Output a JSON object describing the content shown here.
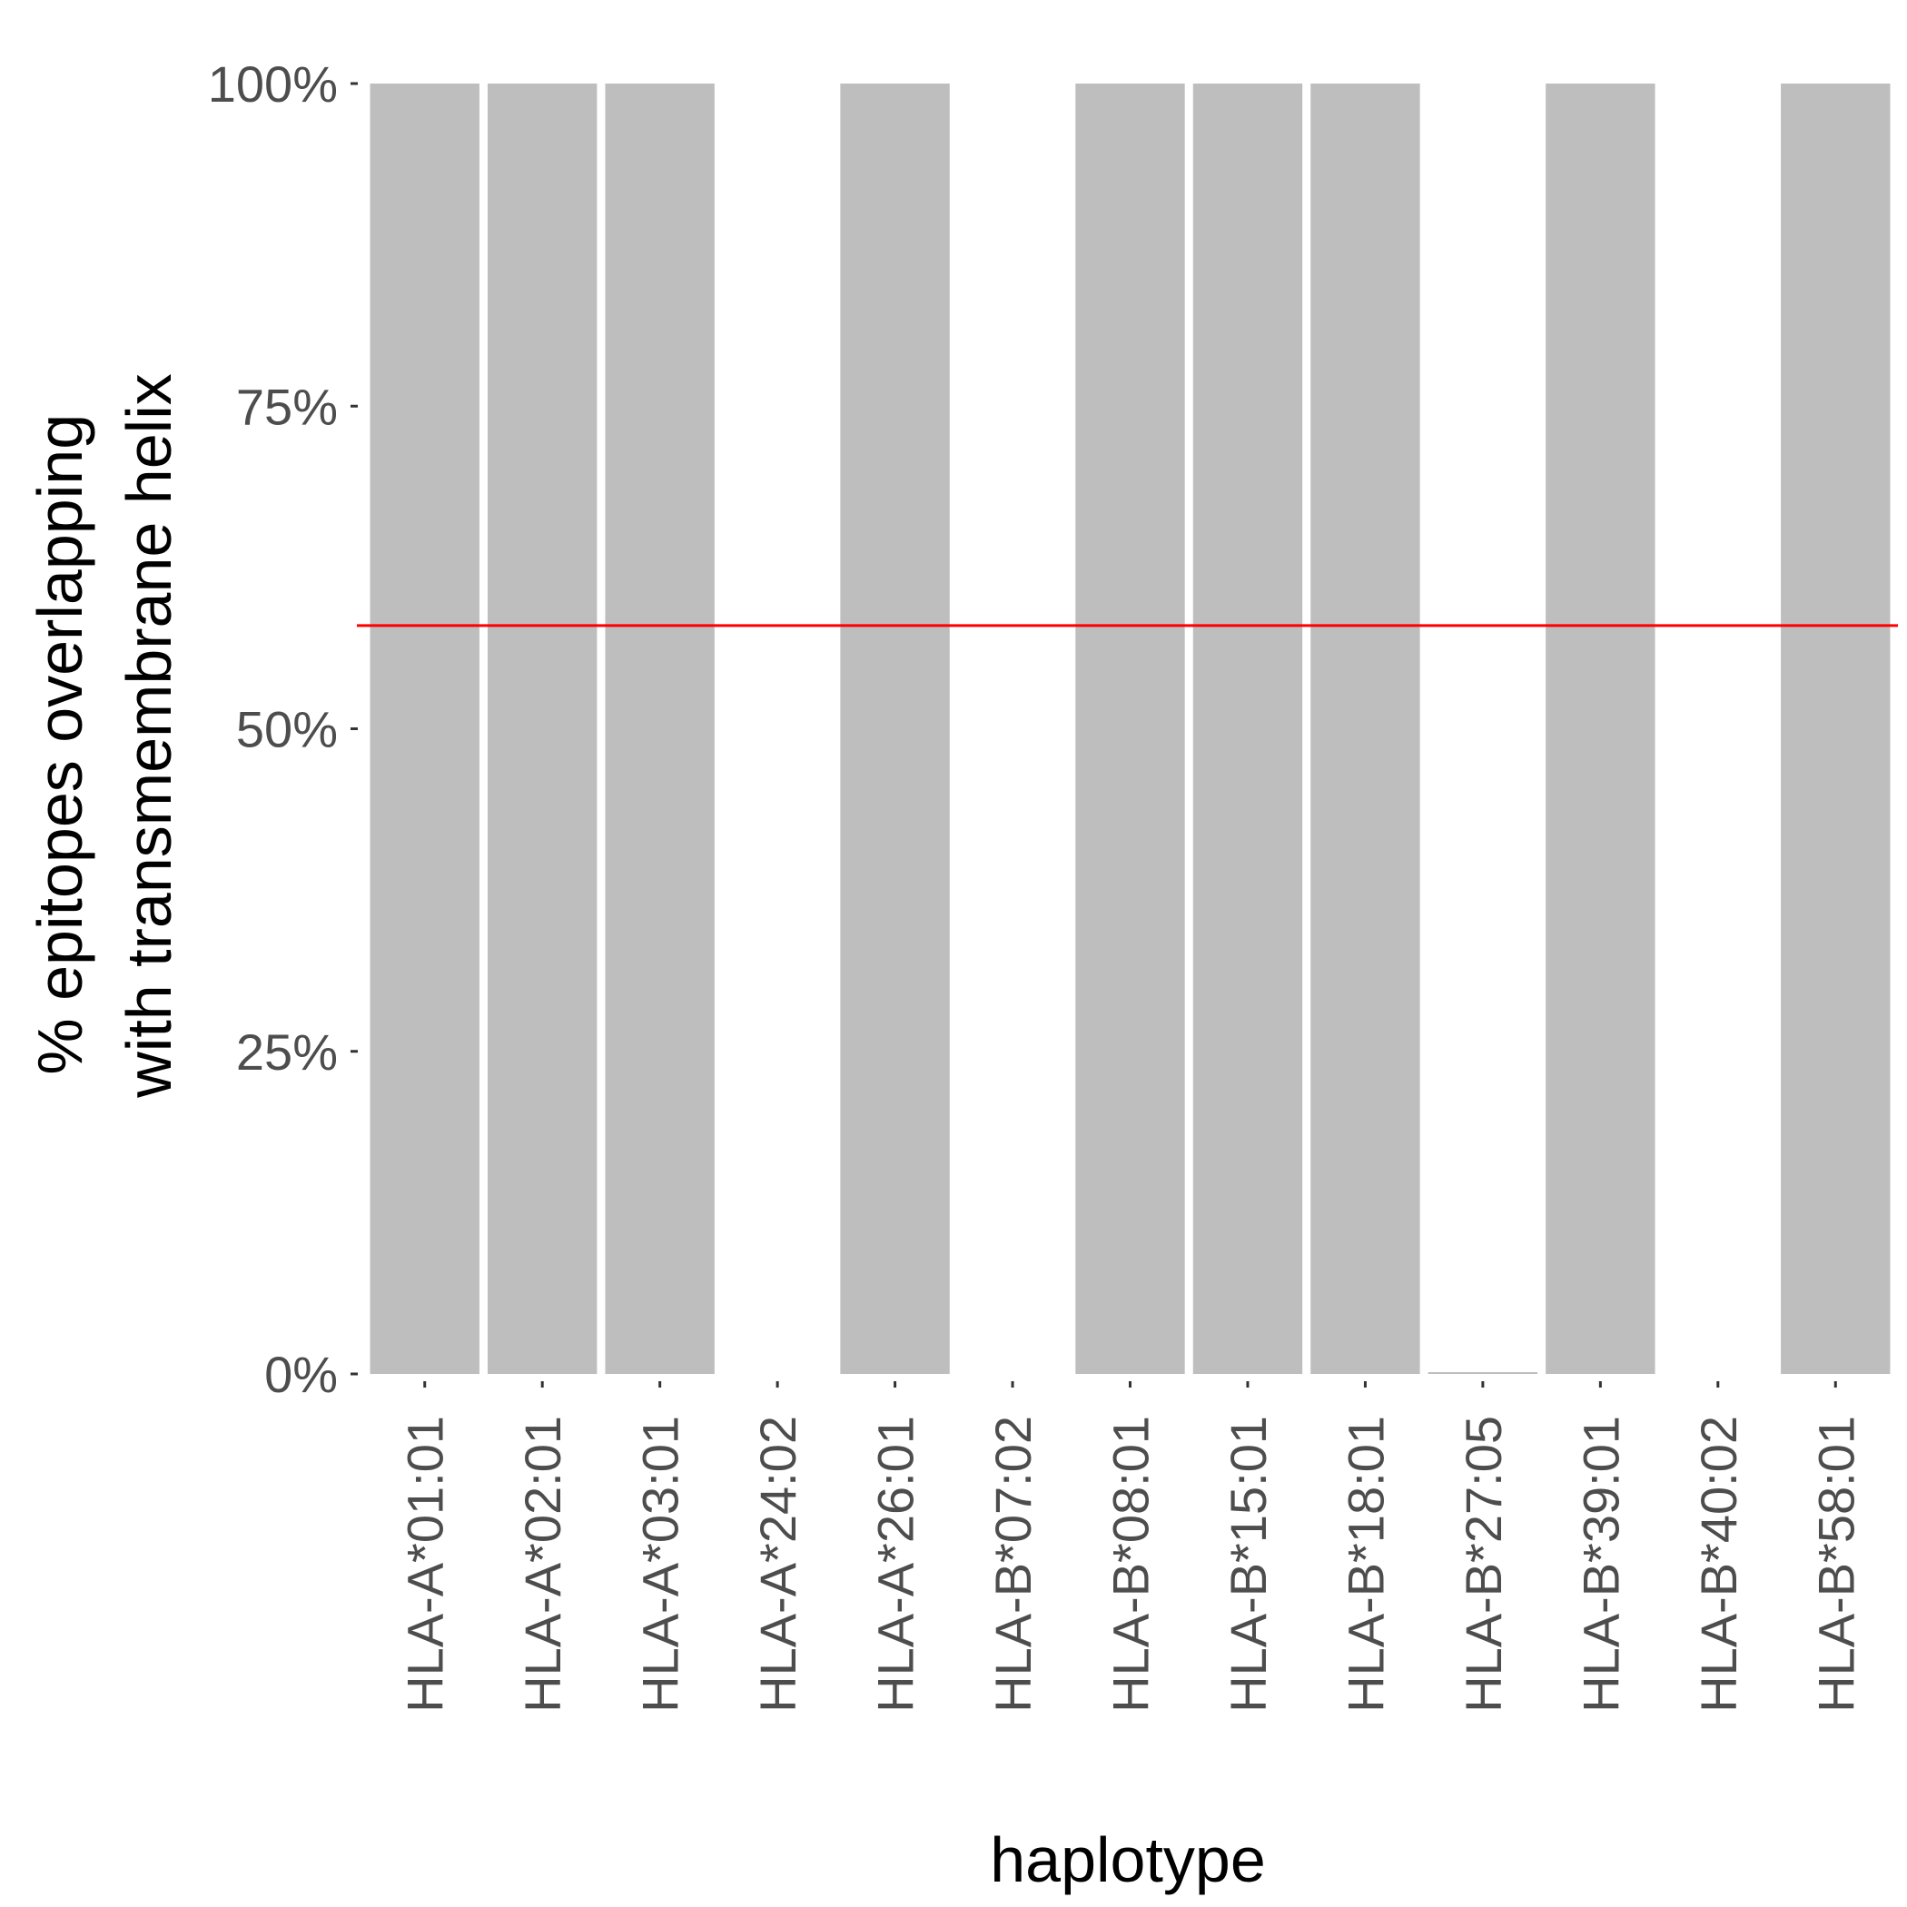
{
  "chart_data": {
    "type": "bar",
    "xlabel": "haplotype",
    "ylabel_lines": [
      "% epitopes overlapping",
      "with transmembrane helix"
    ],
    "categories": [
      "HLA-A*01:01",
      "HLA-A*02:01",
      "HLA-A*03:01",
      "HLA-A*24:02",
      "HLA-A*26:01",
      "HLA-B*07:02",
      "HLA-B*08:01",
      "HLA-B*15:01",
      "HLA-B*18:01",
      "HLA-B*27:05",
      "HLA-B*39:01",
      "HLA-B*40:02",
      "HLA-B*58:01"
    ],
    "values": [
      100,
      100,
      100,
      null,
      100,
      null,
      100,
      100,
      100,
      0,
      100,
      null,
      100
    ],
    "ylim": [
      0,
      100
    ],
    "yticks": [
      0,
      25,
      50,
      75,
      100
    ],
    "ytick_labels": [
      "0%",
      "25%",
      "50%",
      "75%",
      "100%"
    ],
    "reference_line": 58,
    "colors": {
      "bar": "#bebebe",
      "reference_line": "#ff0000",
      "tick": "#4d4d4d"
    },
    "grid": false,
    "legend": "none"
  }
}
